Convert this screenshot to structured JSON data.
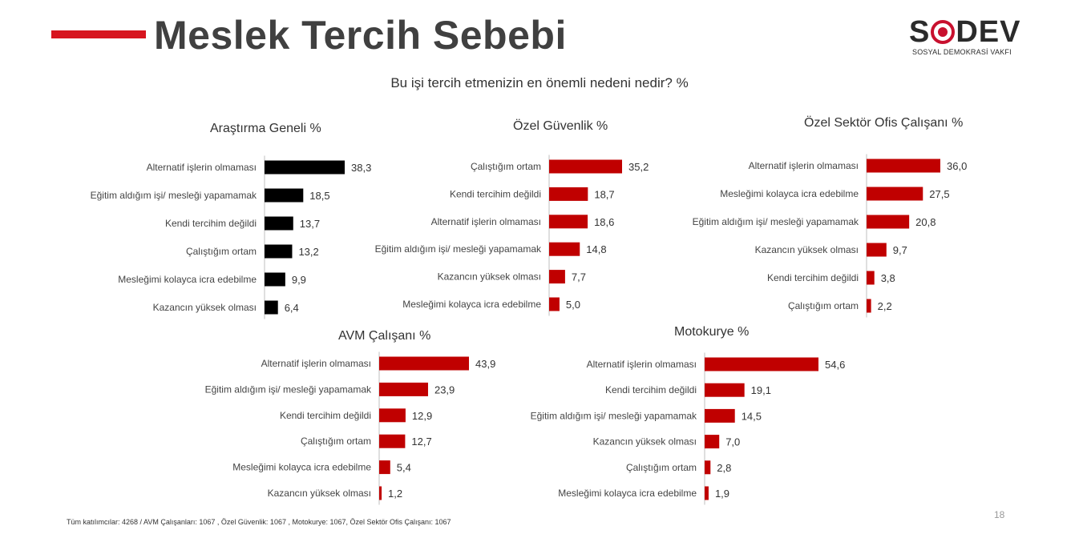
{
  "header": {
    "title": "Meslek Tercih Sebebi",
    "logo_text": "SODEV",
    "logo_sub": "SOSYAL DEMOKRASİ VAKFI",
    "accent": "#d7151f"
  },
  "question": "Bu işi tercih etmenizin en önemli nedeni nedir? %",
  "footnote": "Tüm katılımcılar: 4268 / AVM Çalışanları: 1067 , Özel Güvenlik: 1067 , Motokurye: 1067, Özel Sektör Ofis Çalışanı: 1067",
  "page_number": "18",
  "chart_data": [
    {
      "type": "bar",
      "orientation": "horizontal",
      "title": "Araştırma Geneli %",
      "color": "#000000",
      "categories": [
        "Alternatif işlerin olmaması",
        "Eğitim aldığım işi/ mesleği yapamamak",
        "Kendi tercihim değildi",
        "Çalıştığım ortam",
        "Mesleğimi kolayca icra edebilme",
        "Kazancın yüksek olması"
      ],
      "values": [
        38.3,
        18.5,
        13.7,
        13.2,
        9.9,
        6.4
      ],
      "value_labels": [
        "38,3",
        "18,5",
        "13,7",
        "13,2",
        "9,9",
        "6,4"
      ]
    },
    {
      "type": "bar",
      "orientation": "horizontal",
      "title": "Özel Güvenlik %",
      "color": "#c00000",
      "categories": [
        "Çalıştığım ortam",
        "Kendi tercihim değildi",
        "Alternatif işlerin olmaması",
        "Eğitim aldığım işi/ mesleği yapamamak",
        "Kazancın yüksek olması",
        "Mesleğimi kolayca icra edebilme"
      ],
      "values": [
        35.2,
        18.7,
        18.6,
        14.8,
        7.7,
        5.0
      ],
      "value_labels": [
        "35,2",
        "18,7",
        "18,6",
        "14,8",
        "7,7",
        "5,0"
      ]
    },
    {
      "type": "bar",
      "orientation": "horizontal",
      "title": "Özel Sektör Ofis Çalışanı %",
      "color": "#c00000",
      "categories": [
        "Alternatif işlerin olmaması",
        "Mesleğimi kolayca icra edebilme",
        "Eğitim aldığım işi/ mesleği yapamamak",
        "Kazancın yüksek olması",
        "Kendi tercihim değildi",
        "Çalıştığım ortam"
      ],
      "values": [
        36.0,
        27.5,
        20.8,
        9.7,
        3.8,
        2.2
      ],
      "value_labels": [
        "36,0",
        "27,5",
        "20,8",
        "9,7",
        "3,8",
        "2,2"
      ]
    },
    {
      "type": "bar",
      "orientation": "horizontal",
      "title": "AVM Çalışanı %",
      "color": "#c00000",
      "categories": [
        "Alternatif işlerin olmaması",
        "Eğitim aldığım işi/ mesleği yapamamak",
        "Kendi tercihim değildi",
        "Çalıştığım ortam",
        "Mesleğimi kolayca icra edebilme",
        "Kazancın yüksek olması"
      ],
      "values": [
        43.9,
        23.9,
        12.9,
        12.7,
        5.4,
        1.2
      ],
      "value_labels": [
        "43,9",
        "23,9",
        "12,9",
        "12,7",
        "5,4",
        "1,2"
      ]
    },
    {
      "type": "bar",
      "orientation": "horizontal",
      "title": "Motokurye %",
      "color": "#c00000",
      "categories": [
        "Alternatif işlerin olmaması",
        "Kendi tercihim değildi",
        "Eğitim aldığım işi/ mesleği yapamamak",
        "Kazancın yüksek olması",
        "Çalıştığım ortam",
        "Mesleğimi kolayca icra edebilme"
      ],
      "values": [
        54.6,
        19.1,
        14.5,
        7.0,
        2.8,
        1.9
      ],
      "value_labels": [
        "54,6",
        "19,1",
        "14,5",
        "7,0",
        "2,8",
        "1,9"
      ]
    }
  ]
}
